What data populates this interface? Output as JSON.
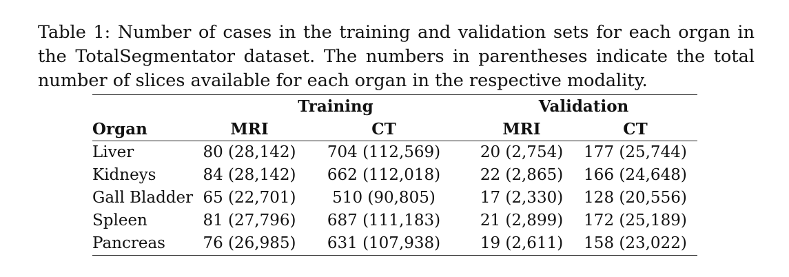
{
  "caption": {
    "line1": "Table 1: Number of cases in the training and validation sets for each organ in",
    "line2": "the TotalSegmentator dataset. The numbers in parentheses indicate the total",
    "line3": "number of slices available for each organ in the respective modality."
  },
  "table": {
    "group_headers": [
      "Training",
      "Validation"
    ],
    "column_headers": [
      "Organ",
      "MRI",
      "CT",
      "MRI",
      "CT"
    ],
    "rows": [
      [
        "Liver",
        "80 (28,142)",
        "704 (112,569)",
        "20 (2,754)",
        "177 (25,744)"
      ],
      [
        "Kidneys",
        "84 (28,142)",
        "662 (112,018)",
        "22 (2,865)",
        "166 (24,648)"
      ],
      [
        "Gall Bladder",
        "65 (22,701)",
        "510 (90,805)",
        "17 (2,330)",
        "128 (20,556)"
      ],
      [
        "Spleen",
        "81 (27,796)",
        "687 (111,183)",
        "21 (2,899)",
        "172 (25,189)"
      ],
      [
        "Pancreas",
        "76 (26,985)",
        "631 (107,938)",
        "19 (2,611)",
        "158 (23,022)"
      ]
    ]
  }
}
